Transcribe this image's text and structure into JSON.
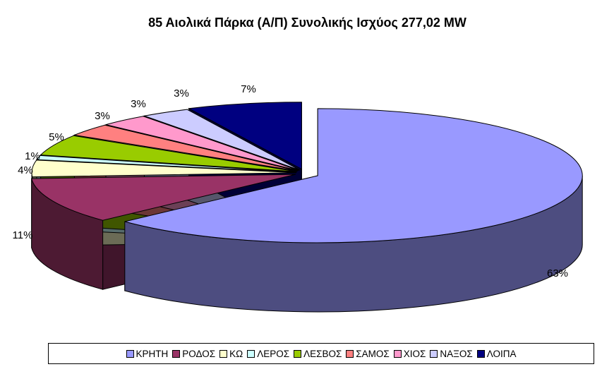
{
  "chart_data": {
    "type": "pie",
    "title": "85 Αιολικά Πάρκα (Α/Π) Συνολικής Ισχύος 277,02 MW",
    "categories": [
      "ΚΡΗΤΗ",
      "ΡΟΔΟΣ",
      "ΚΩ",
      "ΛΕΡΟΣ",
      "ΛΕΣΒΟΣ",
      "ΣΑΜΟΣ",
      "ΧΙΟΣ",
      "ΝΑΞΟΣ",
      "ΛΟΙΠΑ"
    ],
    "values": [
      63,
      11,
      4,
      1,
      5,
      3,
      3,
      3,
      7
    ],
    "value_labels": [
      "63%",
      "11%",
      "4%",
      "1%",
      "5%",
      "3%",
      "3%",
      "3%",
      "7%"
    ],
    "colors": [
      "#9999FF",
      "#993366",
      "#FFFFCC",
      "#CCFFFF",
      "#99CC00",
      "#FF8080",
      "#FF99CC",
      "#CCCCFF",
      "#000080"
    ],
    "style": "3d-exploded",
    "legend_position": "bottom"
  }
}
